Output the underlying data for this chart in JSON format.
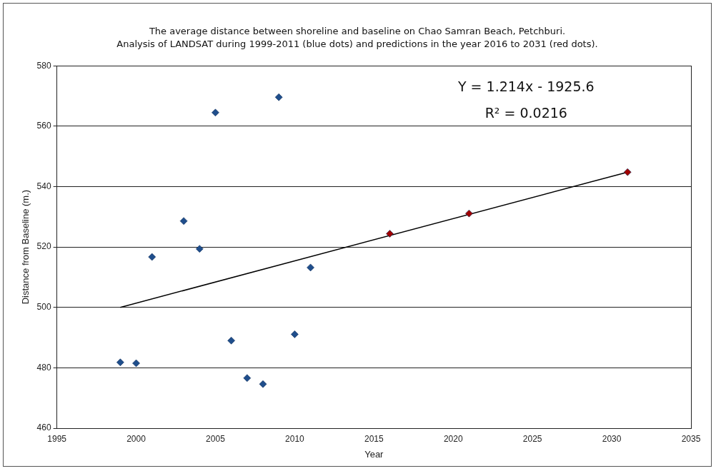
{
  "chart_data": {
    "type": "scatter",
    "title": "The average distance between shoreline and baseline on Chao Samran Beach, Petchburi.",
    "subtitle": "Analysis of LANDSAT during 1999-2011 (blue dots) and predictions in the year 2016 to 2031 (red dots).",
    "xlabel": "Year",
    "ylabel": "Distance from Baseline (m.)",
    "series": [
      {
        "type": "scatter",
        "color": "#1f4e8c",
        "x": [
          1999,
          2000,
          2001,
          2003,
          2004,
          2005,
          2006,
          2007,
          2008,
          2009,
          2010,
          2011
        ],
        "values": [
          481.8,
          481.5,
          516.7,
          528.6,
          519.4,
          564.5,
          489,
          476.6,
          474.6,
          569.6,
          491.1,
          513.2
        ]
      },
      {
        "type": "scatter",
        "color": "#a00000",
        "x": [
          2016,
          2021,
          2031
        ],
        "values": [
          524.4,
          531.1,
          544.8
        ]
      },
      {
        "type": "line",
        "color": "#000000",
        "marker": "none",
        "x": [
          1999,
          2031
        ],
        "values": [
          500,
          544.8
        ]
      }
    ],
    "xlim": [
      1995,
      2035
    ],
    "xticks": [
      1995,
      2000,
      2005,
      2010,
      2015,
      2020,
      2025,
      2030,
      2035
    ],
    "ylim": [
      460,
      580
    ],
    "yticks": [
      460,
      480,
      500,
      520,
      540,
      560,
      580
    ],
    "grid": "y",
    "legend": false,
    "marker": "diamond",
    "annotations": [
      "Y = 1.214x - 1925.6",
      "R² = 0.0216"
    ]
  }
}
